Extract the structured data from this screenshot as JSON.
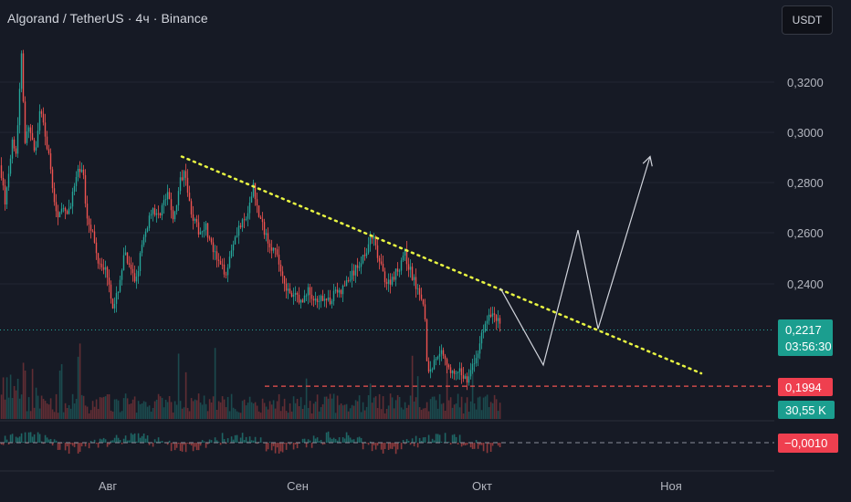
{
  "header": {
    "title": "Algorand / TetherUS · 4ч · Binance",
    "currency": "USDT"
  },
  "colors": {
    "background": "#161a25",
    "up": "#26a69a",
    "down": "#ef5350",
    "trendline": "#e8f542",
    "projection": "#d1d4dc",
    "grid": "#232734",
    "price_label_bg": "#1b9e8f",
    "level_label_bg": "#ef3f4f"
  },
  "chart_data": {
    "type": "candlestick",
    "xlabels": [
      "Авг",
      "Сен",
      "Окт",
      "Ноя"
    ],
    "y_ticks": [
      "0,3200",
      "0,3000",
      "0,2800",
      "0,2600",
      "0,2400"
    ],
    "y_tick_values": [
      0.32,
      0.3,
      0.28,
      0.26,
      0.24
    ],
    "ylim": [
      0.19,
      0.336
    ],
    "price_path": [
      [
        0,
        0.287
      ],
      [
        5,
        0.272
      ],
      [
        9,
        0.282
      ],
      [
        13,
        0.299
      ],
      [
        17,
        0.292
      ],
      [
        20,
        0.31
      ],
      [
        23,
        0.332
      ],
      [
        27,
        0.296
      ],
      [
        32,
        0.303
      ],
      [
        38,
        0.29
      ],
      [
        44,
        0.31
      ],
      [
        50,
        0.297
      ],
      [
        56,
        0.283
      ],
      [
        62,
        0.264
      ],
      [
        66,
        0.272
      ],
      [
        72,
        0.266
      ],
      [
        78,
        0.274
      ],
      [
        84,
        0.283
      ],
      [
        90,
        0.287
      ],
      [
        94,
        0.268
      ],
      [
        100,
        0.262
      ],
      [
        106,
        0.25
      ],
      [
        112,
        0.248
      ],
      [
        118,
        0.243
      ],
      [
        124,
        0.229
      ],
      [
        130,
        0.24
      ],
      [
        136,
        0.252
      ],
      [
        142,
        0.245
      ],
      [
        148,
        0.241
      ],
      [
        154,
        0.253
      ],
      [
        160,
        0.262
      ],
      [
        166,
        0.271
      ],
      [
        172,
        0.266
      ],
      [
        178,
        0.272
      ],
      [
        184,
        0.275
      ],
      [
        190,
        0.265
      ],
      [
        196,
        0.279
      ],
      [
        202,
        0.287
      ],
      [
        207,
        0.272
      ],
      [
        212,
        0.265
      ],
      [
        218,
        0.26
      ],
      [
        224,
        0.264
      ],
      [
        230,
        0.256
      ],
      [
        236,
        0.25
      ],
      [
        242,
        0.246
      ],
      [
        248,
        0.245
      ],
      [
        254,
        0.256
      ],
      [
        260,
        0.262
      ],
      [
        266,
        0.264
      ],
      [
        272,
        0.268
      ],
      [
        277,
        0.28
      ],
      [
        282,
        0.268
      ],
      [
        288,
        0.262
      ],
      [
        294,
        0.257
      ],
      [
        300,
        0.253
      ],
      [
        306,
        0.247
      ],
      [
        312,
        0.24
      ],
      [
        318,
        0.234
      ],
      [
        324,
        0.236
      ],
      [
        330,
        0.232
      ],
      [
        336,
        0.238
      ],
      [
        342,
        0.234
      ],
      [
        348,
        0.231
      ],
      [
        354,
        0.236
      ],
      [
        360,
        0.232
      ],
      [
        366,
        0.238
      ],
      [
        372,
        0.236
      ],
      [
        378,
        0.24
      ],
      [
        384,
        0.243
      ],
      [
        390,
        0.246
      ],
      [
        396,
        0.25
      ],
      [
        402,
        0.255
      ],
      [
        408,
        0.259
      ],
      [
        412,
        0.252
      ],
      [
        418,
        0.245
      ],
      [
        424,
        0.24
      ],
      [
        430,
        0.243
      ],
      [
        436,
        0.246
      ],
      [
        442,
        0.253
      ],
      [
        448,
        0.246
      ],
      [
        454,
        0.24
      ],
      [
        460,
        0.237
      ],
      [
        464,
        0.232
      ],
      [
        468,
        0.204
      ],
      [
        474,
        0.208
      ],
      [
        480,
        0.214
      ],
      [
        486,
        0.212
      ],
      [
        492,
        0.206
      ],
      [
        498,
        0.203
      ],
      [
        504,
        0.205
      ],
      [
        510,
        0.202
      ],
      [
        516,
        0.206
      ],
      [
        522,
        0.211
      ],
      [
        528,
        0.222
      ],
      [
        534,
        0.226
      ],
      [
        540,
        0.229
      ],
      [
        544,
        0.226
      ],
      [
        548,
        0.2217
      ]
    ],
    "trendline": [
      [
        199,
        0.2905
      ],
      [
        768,
        0.2045
      ]
    ],
    "projection": [
      [
        548,
        0.2383
      ],
      [
        595,
        0.2078
      ],
      [
        633,
        0.2613
      ],
      [
        655,
        0.2222
      ],
      [
        712,
        0.2905
      ]
    ],
    "current_price": {
      "value": 0.2217,
      "label": "0,2217",
      "countdown": "03:56:30"
    },
    "support_level": {
      "value": 0.1994,
      "label": "0,1994"
    },
    "volume_label": "30,55 K",
    "oscillator_label": "−0,0010"
  }
}
